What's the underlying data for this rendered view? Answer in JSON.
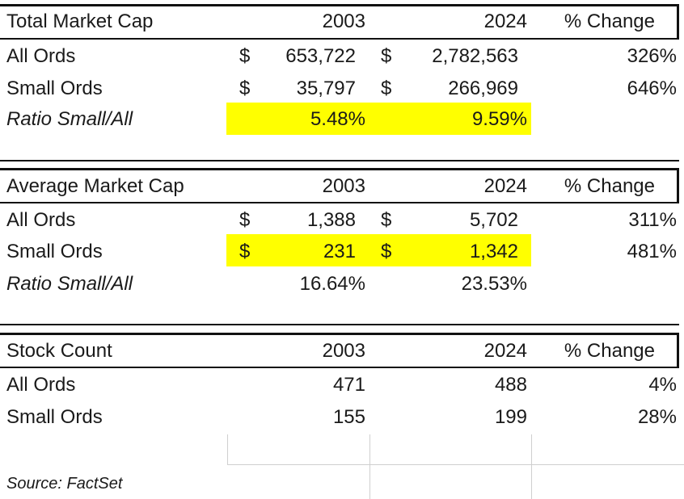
{
  "sections": [
    {
      "header": {
        "label": "Total Market Cap",
        "y1": "2003",
        "y2": "2024",
        "change": "% Change"
      },
      "rows": [
        {
          "label": "All Ords",
          "cur1": "$",
          "v1": "653,722",
          "cur2": "$",
          "v2": "2,782,563",
          "change": "326%"
        },
        {
          "label": "Small Ords",
          "cur1": "$",
          "v1": "35,797",
          "cur2": "$",
          "v2": "266,969",
          "change": "646%"
        },
        {
          "label": "Ratio Small/All",
          "v1": "5.48%",
          "v2": "9.59%"
        }
      ]
    },
    {
      "header": {
        "label": "Average Market Cap",
        "y1": "2003",
        "y2": "2024",
        "change": "% Change"
      },
      "rows": [
        {
          "label": "All Ords",
          "cur1": "$",
          "v1": "1,388",
          "cur2": "$",
          "v2": "5,702",
          "change": "311%"
        },
        {
          "label": "Small Ords",
          "cur1": "$",
          "v1": "231",
          "cur2": "$",
          "v2": "1,342",
          "change": "481%"
        },
        {
          "label": "Ratio Small/All",
          "v1": "16.64%",
          "v2": "23.53%"
        }
      ]
    },
    {
      "header": {
        "label": "Stock Count",
        "y1": "2003",
        "y2": "2024",
        "change": "% Change"
      },
      "rows": [
        {
          "label": "All Ords",
          "v1": "471",
          "v2": "488",
          "change": "4%"
        },
        {
          "label": "Small Ords",
          "v1": "155",
          "v2": "199",
          "change": "28%"
        }
      ]
    }
  ],
  "source": "Source: FactSet",
  "highlight_color": "#ffff00"
}
